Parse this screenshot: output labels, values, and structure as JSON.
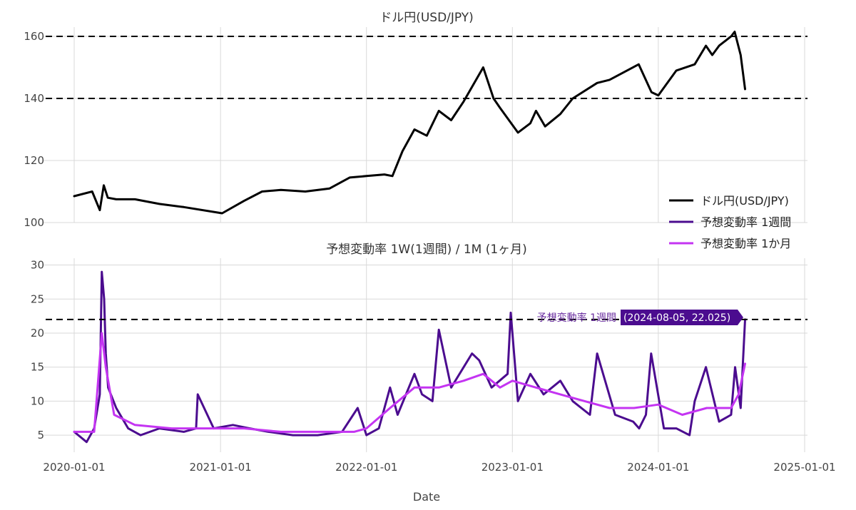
{
  "chart_data": [
    {
      "type": "line",
      "title": "ドル円(USD/JPY)",
      "xlabel": "",
      "ylabel": "",
      "ylim": [
        100,
        163
      ],
      "yticks": [
        100,
        120,
        140,
        160
      ],
      "grid": true,
      "reference_lines_y": [
        140,
        160
      ],
      "series": [
        {
          "name": "ドル円(USD/JPY)",
          "color": "#000000",
          "x": [
            "2020-01-01",
            "2020-02-15",
            "2020-03-05",
            "2020-03-15",
            "2020-03-25",
            "2020-04-15",
            "2020-06-01",
            "2020-08-01",
            "2020-10-01",
            "2021-01-05",
            "2021-03-01",
            "2021-04-15",
            "2021-06-01",
            "2021-08-01",
            "2021-10-01",
            "2021-11-20",
            "2022-01-01",
            "2022-02-15",
            "2022-03-07",
            "2022-04-01",
            "2022-05-01",
            "2022-06-01",
            "2022-07-01",
            "2022-08-01",
            "2022-09-01",
            "2022-10-20",
            "2022-11-15",
            "2022-12-01",
            "2023-01-15",
            "2023-02-15",
            "2023-03-01",
            "2023-03-24",
            "2023-05-01",
            "2023-06-01",
            "2023-08-01",
            "2023-09-01",
            "2023-11-13",
            "2023-12-15",
            "2024-01-01",
            "2024-02-15",
            "2024-04-01",
            "2024-04-29",
            "2024-05-15",
            "2024-06-01",
            "2024-07-01",
            "2024-07-10",
            "2024-07-25",
            "2024-08-05"
          ],
          "y": [
            108.5,
            110,
            104,
            112,
            108,
            107.5,
            107.5,
            106,
            105,
            103,
            107,
            110,
            110.5,
            110,
            111,
            114.5,
            115,
            115.5,
            115,
            123,
            130,
            128,
            136,
            133,
            139,
            150,
            140,
            137,
            129,
            132,
            136,
            131,
            135,
            140,
            145,
            146,
            151,
            142,
            141,
            149,
            151,
            157,
            154,
            157,
            160,
            161.5,
            154,
            143
          ]
        }
      ]
    },
    {
      "type": "line",
      "title": "予想変動率 1W(1週間) / 1M (1ヶ月)",
      "xlabel": "Date",
      "ylabel": "",
      "ylim": [
        2.5,
        31
      ],
      "yticks": [
        5,
        10,
        15,
        20,
        25,
        30
      ],
      "xticks": [
        "2020-01-01",
        "2021-01-01",
        "2022-01-01",
        "2023-01-01",
        "2024-01-01",
        "2025-01-01"
      ],
      "grid": true,
      "reference_lines_y": [
        22
      ],
      "series": [
        {
          "name": "予想変動率 1週間",
          "color": "#4b0c8f",
          "x": [
            "2020-01-01",
            "2020-02-01",
            "2020-02-20",
            "2020-03-05",
            "2020-03-10",
            "2020-03-16",
            "2020-03-20",
            "2020-03-26",
            "2020-04-15",
            "2020-05-15",
            "2020-06-15",
            "2020-08-01",
            "2020-10-01",
            "2020-11-01",
            "2020-11-05",
            "2020-12-15",
            "2021-02-01",
            "2021-03-15",
            "2021-05-01",
            "2021-07-01",
            "2021-09-01",
            "2021-11-01",
            "2021-12-10",
            "2022-01-01",
            "2022-02-01",
            "2022-03-01",
            "2022-03-20",
            "2022-05-01",
            "2022-05-20",
            "2022-06-15",
            "2022-07-01",
            "2022-08-01",
            "2022-09-22",
            "2022-10-10",
            "2022-11-10",
            "2022-12-20",
            "2022-12-28",
            "2023-01-15",
            "2023-02-15",
            "2023-03-20",
            "2023-05-01",
            "2023-06-01",
            "2023-07-14",
            "2023-08-01",
            "2023-09-15",
            "2023-10-30",
            "2023-11-14",
            "2023-12-01",
            "2023-12-14",
            "2024-01-15",
            "2024-02-15",
            "2024-03-19",
            "2024-04-01",
            "2024-04-29",
            "2024-06-01",
            "2024-07-01",
            "2024-07-11",
            "2024-07-25",
            "2024-08-05"
          ],
          "y": [
            5.5,
            4,
            6,
            11,
            29,
            25,
            17,
            12,
            9,
            6,
            5,
            6,
            5.5,
            6,
            11,
            6,
            6.5,
            6,
            5.5,
            5,
            5,
            5.5,
            9,
            5,
            6,
            12,
            8,
            14,
            11,
            10,
            20.5,
            12,
            17,
            16,
            12,
            14,
            23,
            10,
            14,
            11,
            13,
            10,
            8,
            17,
            8,
            7,
            6,
            8,
            17,
            6,
            6,
            5,
            10,
            15,
            7,
            8,
            15,
            9,
            22
          ]
        },
        {
          "name": "予想変動率 1か月",
          "color": "#c434f2",
          "x": [
            "2020-01-01",
            "2020-02-20",
            "2020-03-10",
            "2020-03-20",
            "2020-04-10",
            "2020-06-01",
            "2020-09-01",
            "2020-12-01",
            "2021-03-01",
            "2021-06-01",
            "2021-09-01",
            "2021-12-01",
            "2022-01-01",
            "2022-03-01",
            "2022-05-01",
            "2022-07-01",
            "2022-09-01",
            "2022-10-20",
            "2022-12-01",
            "2023-01-01",
            "2023-03-01",
            "2023-05-01",
            "2023-07-01",
            "2023-09-01",
            "2023-11-01",
            "2024-01-01",
            "2024-03-01",
            "2024-05-01",
            "2024-07-01",
            "2024-07-20",
            "2024-08-05"
          ],
          "y": [
            5.5,
            5.5,
            20,
            15,
            8,
            6.5,
            6,
            6,
            6,
            5.5,
            5.5,
            5.5,
            6,
            9,
            12,
            12,
            13,
            14,
            12,
            13,
            12,
            11,
            10,
            9,
            9,
            9.5,
            8,
            9,
            9,
            11,
            15.5
          ]
        }
      ],
      "annotation": {
        "series_label": "予想変動率 1週間",
        "value_label": "(2024-08-05, 22.025)"
      }
    }
  ],
  "legend": {
    "position": "right",
    "items": [
      {
        "label": "ドル円(USD/JPY)",
        "color": "#000000"
      },
      {
        "label": "予想変動率 1週間",
        "color": "#4b0c8f"
      },
      {
        "label": "予想変動率 1か月",
        "color": "#c434f2"
      }
    ]
  }
}
